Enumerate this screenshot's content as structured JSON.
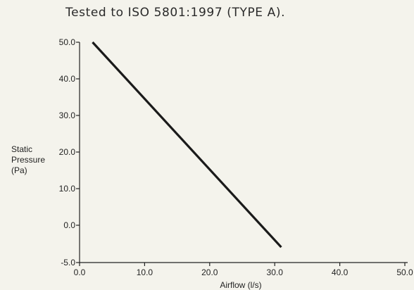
{
  "chart_data": {
    "type": "line",
    "title": "Tested to ISO 5801:1997 (TYPE A).",
    "xlabel": "Airflow (l/s)",
    "ylabel_lines": [
      "Static",
      "Pressure",
      "(Pa)"
    ],
    "xlim": [
      0,
      50
    ],
    "ylim": [
      -5,
      50
    ],
    "x_ticks": [
      {
        "value": 0,
        "label": "0.0"
      },
      {
        "value": 10,
        "label": "10.0"
      },
      {
        "value": 20,
        "label": "20.0"
      },
      {
        "value": 30,
        "label": "30.0"
      },
      {
        "value": 40,
        "label": "40.0"
      },
      {
        "value": 50,
        "label": "50.0"
      }
    ],
    "y_ticks": [
      {
        "value": -5,
        "label": "-5.0"
      },
      {
        "value": 0,
        "label": "0.0"
      },
      {
        "value": 10,
        "label": "10.0"
      },
      {
        "value": 20,
        "label": "20.0"
      },
      {
        "value": 30,
        "label": "30.0"
      },
      {
        "value": 40,
        "label": "40.0"
      },
      {
        "value": 50,
        "label": "50.0"
      }
    ],
    "grid": false,
    "series": [
      {
        "color": "#1a1a1a",
        "points": [
          {
            "x": 2.0,
            "y": 50.0
          },
          {
            "x": 31.0,
            "y": -6.0
          }
        ]
      }
    ]
  }
}
